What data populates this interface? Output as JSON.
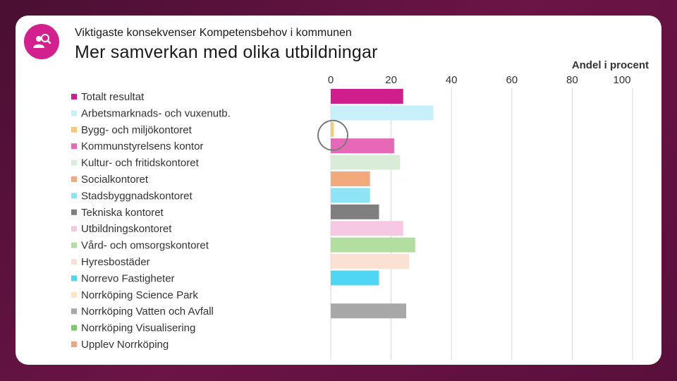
{
  "header": {
    "subtitle": "Viktigaste konsekvenser Kompetensbehov i kommunen",
    "title": "Mer samverkan med olika utbildningar",
    "logo_icon": "person-search-icon"
  },
  "chart_data": {
    "type": "bar",
    "orientation": "horizontal",
    "title": "Mer samverkan med olika utbildningar",
    "xlabel": "Andel i procent",
    "ylabel": "",
    "xlim": [
      0,
      100
    ],
    "xticks": [
      0,
      20,
      40,
      60,
      80,
      100
    ],
    "grid": true,
    "legend": "left",
    "categories": [
      "Totalt resultat",
      "Arbetsmarknads- och vuxenutb.",
      "Bygg- och miljökontoret",
      "Kommunstyrelsens kontor",
      "Kultur- och fritidskontoret",
      "Socialkontoret",
      "Stadsbyggnadskontoret",
      "Tekniska kontoret",
      "Utbildningskontoret",
      "Vård- och omsorgskontoret",
      "Hyresbostäder",
      "Norrevo Fastigheter",
      "Norrköping Science Park",
      "Norrköping Vatten och Avfall",
      "Norrköping Visualisering",
      "Upplev Norrköping"
    ],
    "values": [
      24,
      34,
      1,
      21,
      23,
      13,
      13,
      16,
      24,
      28,
      26,
      16,
      0,
      25,
      0,
      0
    ],
    "colors": [
      "#d01f8c",
      "#c8f0fb",
      "#f5c97a",
      "#e868b8",
      "#d8ecd8",
      "#f2a97c",
      "#8ee4f5",
      "#7f7f7f",
      "#f6c8e4",
      "#b2dea0",
      "#fbe0d4",
      "#4fd6f2",
      "#fbe5c2",
      "#a8a8a8",
      "#7cc96a",
      "#eda47e"
    ]
  }
}
